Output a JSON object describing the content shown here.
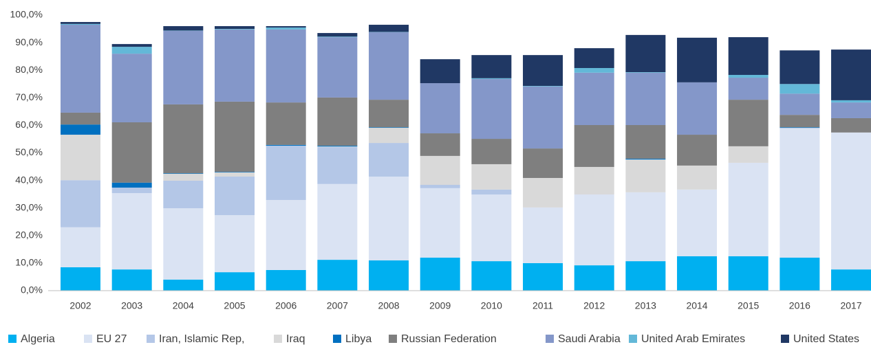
{
  "chart_data": {
    "type": "bar",
    "stacked": true,
    "categories": [
      "2002",
      "2003",
      "2004",
      "2005",
      "2006",
      "2007",
      "2008",
      "2009",
      "2010",
      "2011",
      "2012",
      "2013",
      "2014",
      "2015",
      "2016",
      "2017"
    ],
    "ylim": [
      0,
      100
    ],
    "yticks": [
      {
        "value": 0,
        "label": "0,0%"
      },
      {
        "value": 10,
        "label": "10,0%"
      },
      {
        "value": 20,
        "label": "20,0%"
      },
      {
        "value": 30,
        "label": "30,0%"
      },
      {
        "value": 40,
        "label": "40,0%"
      },
      {
        "value": 50,
        "label": "50,0%"
      },
      {
        "value": 60,
        "label": "60,0%"
      },
      {
        "value": 70,
        "label": "70,0%"
      },
      {
        "value": 80,
        "label": "80,0%"
      },
      {
        "value": 90,
        "label": "90,0%"
      },
      {
        "value": 100,
        "label": "100,0%"
      }
    ],
    "grid": false,
    "legend": "bottom",
    "series": [
      {
        "name": "Algeria",
        "color": "#00b0f0",
        "values": [
          8.5,
          7.7,
          4.0,
          6.7,
          7.5,
          11.2,
          11.0,
          12.0,
          10.7,
          10.0,
          9.2,
          10.7,
          12.5,
          12.5,
          12.0,
          7.7
        ]
      },
      {
        "name": "EU 27",
        "color": "#dae3f3",
        "values": [
          14.5,
          27.7,
          25.9,
          20.7,
          25.4,
          27.5,
          30.4,
          25.2,
          24.2,
          20.2,
          25.7,
          25.0,
          24.2,
          33.9,
          46.9,
          49.7
        ]
      },
      {
        "name": "Iran, Islamic Rep,",
        "color": "#b4c7e7",
        "values": [
          17.1,
          2.0,
          10.0,
          14.0,
          19.7,
          13.4,
          12.2,
          1.2,
          1.8,
          0,
          0,
          0,
          0,
          0,
          0.2,
          0
        ]
      },
      {
        "name": "Iraq",
        "color": "#d9d9d9",
        "values": [
          16.5,
          0,
          2.5,
          1.5,
          0,
          0.2,
          5.5,
          10.5,
          9.2,
          10.7,
          10.0,
          11.9,
          8.7,
          6.0,
          0,
          0
        ]
      },
      {
        "name": "Libya",
        "color": "#0070c0",
        "values": [
          3.7,
          1.8,
          0.2,
          0.2,
          0.3,
          0.3,
          0.2,
          0,
          0,
          0,
          0,
          0.3,
          0,
          0,
          0.2,
          0
        ]
      },
      {
        "name": "Russian Federation",
        "color": "#7f7f7f",
        "values": [
          4.3,
          21.9,
          25.0,
          25.5,
          15.4,
          17.5,
          10.0,
          8.2,
          9.2,
          10.7,
          15.2,
          12.2,
          11.2,
          16.9,
          4.5,
          5.2
        ]
      },
      {
        "name": "Saudi Arabia",
        "color": "#8497c9",
        "values": [
          31.9,
          24.9,
          26.7,
          26.2,
          26.5,
          21.9,
          24.5,
          18.2,
          21.7,
          22.5,
          19.0,
          19.0,
          19.0,
          8.0,
          7.7,
          5.7
        ]
      },
      {
        "name": "United Arab Emirates",
        "color": "#63b8d8",
        "values": [
          0.3,
          2.5,
          0.1,
          0.2,
          0.7,
          0.2,
          0.1,
          0,
          0.3,
          0.2,
          1.7,
          0.2,
          0,
          1.0,
          3.5,
          0.8
        ]
      },
      {
        "name": "United States",
        "color": "#203864",
        "values": [
          0.7,
          1.0,
          1.6,
          1.0,
          0.5,
          1.3,
          2.6,
          8.7,
          8.4,
          11.2,
          7.2,
          13.5,
          16.2,
          13.7,
          12.2,
          18.4
        ]
      }
    ]
  }
}
